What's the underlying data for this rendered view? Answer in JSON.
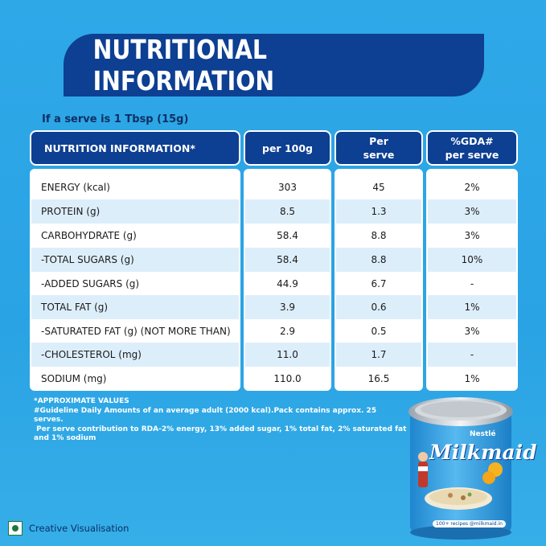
{
  "banner": {
    "title": "NUTRITIONAL INFORMATION"
  },
  "serve_note": "If a serve is 1 Tbsp (15g)",
  "table": {
    "headers": {
      "col1": "NUTRITION INFORMATION*",
      "col2": "per 100g",
      "col3_line1": "Per",
      "col3_line2": "serve",
      "col4_line1": "%GDA#",
      "col4_line2": "per serve"
    },
    "rows": [
      {
        "name": "ENERGY (kcal)",
        "per100g": "303",
        "perserve": "45",
        "gda": "2%"
      },
      {
        "name": "PROTEIN (g)",
        "per100g": "8.5",
        "perserve": "1.3",
        "gda": "3%"
      },
      {
        "name": "CARBOHYDRATE (g)",
        "per100g": "58.4",
        "perserve": "8.8",
        "gda": "3%"
      },
      {
        "name": "-TOTAL SUGARS (g)",
        "per100g": "58.4",
        "perserve": "8.8",
        "gda": "10%"
      },
      {
        "name": "-ADDED SUGARS (g)",
        "per100g": "44.9",
        "perserve": "6.7",
        "gda": "-"
      },
      {
        "name": "TOTAL FAT (g)",
        "per100g": "3.9",
        "perserve": "0.6",
        "gda": "1%"
      },
      {
        "name": "-SATURATED FAT (g) (NOT MORE THAN)",
        "per100g": "2.9",
        "perserve": "0.5",
        "gda": "3%"
      },
      {
        "name": "-CHOLESTEROL (mg)",
        "per100g": "11.0",
        "perserve": "1.7",
        "gda": "-"
      },
      {
        "name": "SODIUM (mg)",
        "per100g": "110.0",
        "perserve": "16.5",
        "gda": "1%"
      }
    ]
  },
  "footnotes": {
    "line1": "*APPROXIMATE VALUES",
    "line2": "#Guideline Daily Amounts of an average adult (2000 kcal).Pack contains approx. 25 serves.",
    "line3": " Per serve contribution to RDA-2% energy, 13% added sugar, 1% total fat, 2% saturated fat",
    "line4": "and 1% sodium"
  },
  "product": {
    "brand": "Nestlé",
    "name": "Milkmaid",
    "tagline": "100+ recipes @milkmaid.in"
  },
  "creative_note": "Creative Visualisation",
  "colors": {
    "background": "#2aa3e4",
    "navy": "#0d3f92",
    "row_alt": "#ddeefb"
  }
}
